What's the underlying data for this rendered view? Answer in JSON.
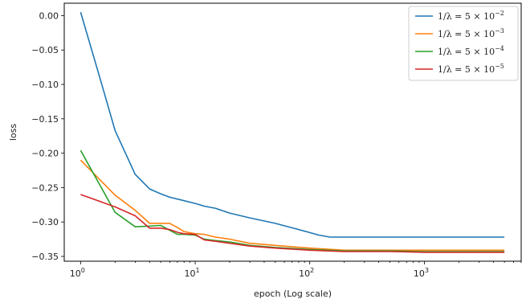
{
  "chart_data": {
    "type": "line",
    "xlabel": "epoch (Log scale)",
    "ylabel": "loss",
    "xscale": "log",
    "xlim": [
      0.72,
      7000
    ],
    "ylim": [
      -0.357,
      0.018
    ],
    "xticks": [
      1,
      10,
      100,
      1000
    ],
    "xtick_labels": [
      "10^0",
      "10^1",
      "10^2",
      "10^3"
    ],
    "yticks": [
      0.0,
      -0.05,
      -0.1,
      -0.15,
      -0.2,
      -0.25,
      -0.3,
      -0.35
    ],
    "ytick_labels": [
      "0.00",
      "−0.05",
      "−0.10",
      "−0.15",
      "−0.20",
      "−0.25",
      "−0.30",
      "−0.35"
    ],
    "grid": false,
    "legend_position": "top-right",
    "series": [
      {
        "name": "1/λ = 5 × 10^−2",
        "color": "#1f77b4",
        "x": [
          1,
          1.5,
          2,
          3,
          4,
          5,
          6,
          8,
          10,
          12,
          15,
          20,
          30,
          50,
          80,
          120,
          150,
          200,
          300,
          500,
          1000,
          2000,
          5000
        ],
        "y": [
          0.005,
          -0.095,
          -0.167,
          -0.231,
          -0.252,
          -0.259,
          -0.264,
          -0.269,
          -0.273,
          -0.277,
          -0.28,
          -0.287,
          -0.294,
          -0.302,
          -0.311,
          -0.319,
          -0.322,
          -0.322,
          -0.322,
          -0.322,
          -0.322,
          -0.322,
          -0.322
        ]
      },
      {
        "name": "1/λ = 5 × 10^−3",
        "color": "#ff7f0e",
        "x": [
          1,
          2,
          3,
          4,
          5,
          6,
          7,
          8,
          10,
          12,
          15,
          20,
          30,
          50,
          100,
          200,
          500,
          1000,
          5000
        ],
        "y": [
          -0.21,
          -0.261,
          -0.283,
          -0.302,
          -0.302,
          -0.302,
          -0.308,
          -0.314,
          -0.317,
          -0.318,
          -0.322,
          -0.325,
          -0.331,
          -0.334,
          -0.338,
          -0.341,
          -0.341,
          -0.341,
          -0.341
        ]
      },
      {
        "name": "1/λ = 5 × 10^−4",
        "color": "#2ca02c",
        "x": [
          1,
          2,
          3,
          4,
          5,
          6,
          7,
          8,
          10,
          12,
          15,
          20,
          30,
          50,
          100,
          200,
          500,
          1000,
          5000
        ],
        "y": [
          -0.196,
          -0.286,
          -0.307,
          -0.306,
          -0.305,
          -0.312,
          -0.318,
          -0.318,
          -0.319,
          -0.325,
          -0.327,
          -0.329,
          -0.334,
          -0.337,
          -0.34,
          -0.342,
          -0.342,
          -0.343,
          -0.343
        ]
      },
      {
        "name": "1/λ = 5 × 10^−5",
        "color": "#d62728",
        "x": [
          1,
          2,
          3,
          4,
          5,
          6,
          7,
          8,
          10,
          12,
          15,
          20,
          30,
          50,
          100,
          200,
          500,
          1000,
          5000
        ],
        "y": [
          -0.26,
          -0.278,
          -0.291,
          -0.309,
          -0.309,
          -0.311,
          -0.315,
          -0.317,
          -0.318,
          -0.326,
          -0.328,
          -0.331,
          -0.335,
          -0.338,
          -0.341,
          -0.343,
          -0.343,
          -0.344,
          -0.344
        ]
      }
    ],
    "legend": [
      {
        "prefix": "1/λ = 5 × 10",
        "exp": "−2",
        "color": "#1f77b4"
      },
      {
        "prefix": "1/λ = 5 × 10",
        "exp": "−3",
        "color": "#ff7f0e"
      },
      {
        "prefix": "1/λ = 5 × 10",
        "exp": "−4",
        "color": "#2ca02c"
      },
      {
        "prefix": "1/λ = 5 × 10",
        "exp": "−5",
        "color": "#d62728"
      }
    ]
  }
}
